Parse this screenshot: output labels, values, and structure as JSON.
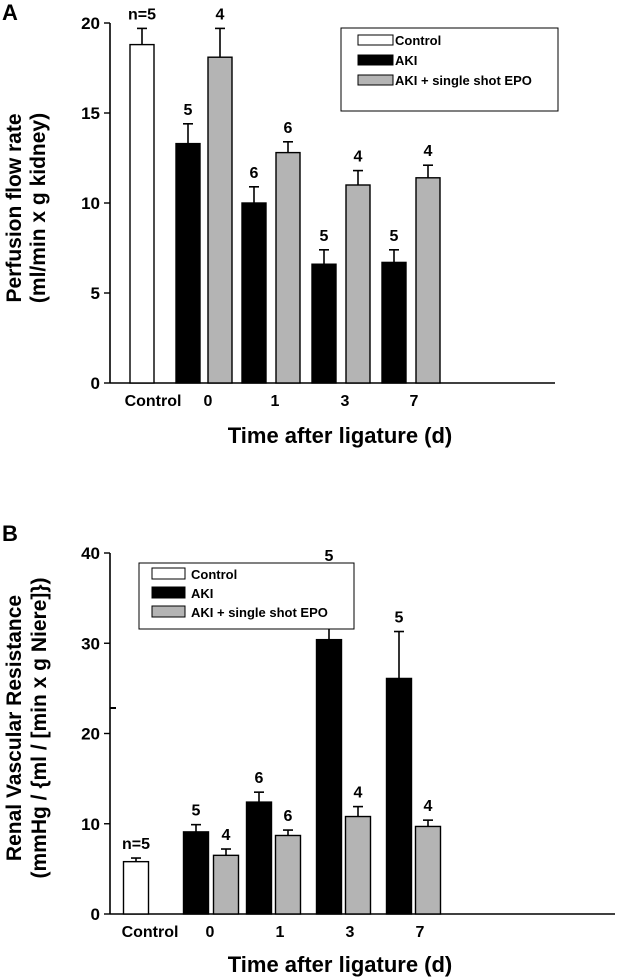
{
  "chart_data": [
    {
      "type": "bar",
      "panel": "A",
      "categories": [
        "Control",
        "0",
        "1",
        "3",
        "7"
      ],
      "xlabel": "Time after ligature (d)",
      "ylabel_line1": "Perfusion flow rate",
      "ylabel_line2": "(ml/min x g kidney)",
      "ylim": [
        0,
        20
      ],
      "yticks": [
        "0",
        "5",
        "10",
        "15",
        "20"
      ],
      "ytick_values": [
        0,
        5,
        10,
        15,
        20
      ],
      "legend_position": "top-right",
      "series": [
        {
          "name": "Control",
          "color": "#ffffff",
          "values": [
            18.8,
            null,
            null,
            null,
            null
          ],
          "errors": [
            0.9,
            null,
            null,
            null,
            null
          ],
          "n": [
            "n=5",
            null,
            null,
            null,
            null
          ]
        },
        {
          "name": "AKI",
          "color": "#000000",
          "values": [
            null,
            13.3,
            10.0,
            6.6,
            6.7
          ],
          "errors": [
            null,
            1.1,
            0.9,
            0.8,
            0.7
          ],
          "n": [
            null,
            "5",
            "6",
            "5",
            "5"
          ]
        },
        {
          "name": "AKI + single shot EPO",
          "color": "#b4b4b4",
          "values": [
            null,
            18.1,
            12.8,
            11.0,
            11.4
          ],
          "errors": [
            null,
            1.6,
            0.6,
            0.8,
            0.7
          ],
          "n": [
            null,
            "4",
            "6",
            "4",
            "4"
          ]
        }
      ]
    },
    {
      "type": "bar",
      "panel": "B",
      "categories": [
        "Control",
        "0",
        "1",
        "3",
        "7"
      ],
      "xlabel": "Time after ligature (d)",
      "ylabel_line1": "Renal Vascular Resistance",
      "ylabel_line2": "(mmHg / {ml / [min x g Niere]})",
      "ylim": [
        0,
        40
      ],
      "yticks": [
        "0",
        "10",
        "20",
        "30",
        "40"
      ],
      "ytick_values": [
        0,
        10,
        20,
        30,
        40
      ],
      "legend_position": "top-left",
      "series": [
        {
          "name": "Control",
          "color": "#ffffff",
          "values": [
            5.8,
            null,
            null,
            null,
            null
          ],
          "errors": [
            0.4,
            null,
            null,
            null,
            null
          ],
          "n": [
            "n=5",
            null,
            null,
            null,
            null
          ]
        },
        {
          "name": "AKI",
          "color": "#000000",
          "values": [
            null,
            9.1,
            12.4,
            30.4,
            26.1
          ],
          "errors": [
            null,
            0.8,
            1.1,
            7.7,
            5.2
          ],
          "n": [
            null,
            "5",
            "6",
            "5",
            "5"
          ]
        },
        {
          "name": "AKI + single shot EPO",
          "color": "#b4b4b4",
          "values": [
            null,
            6.5,
            8.7,
            10.8,
            9.7
          ],
          "errors": [
            null,
            0.7,
            0.6,
            1.1,
            0.7
          ],
          "n": [
            null,
            "4",
            "6",
            "4",
            "4"
          ]
        }
      ]
    }
  ]
}
